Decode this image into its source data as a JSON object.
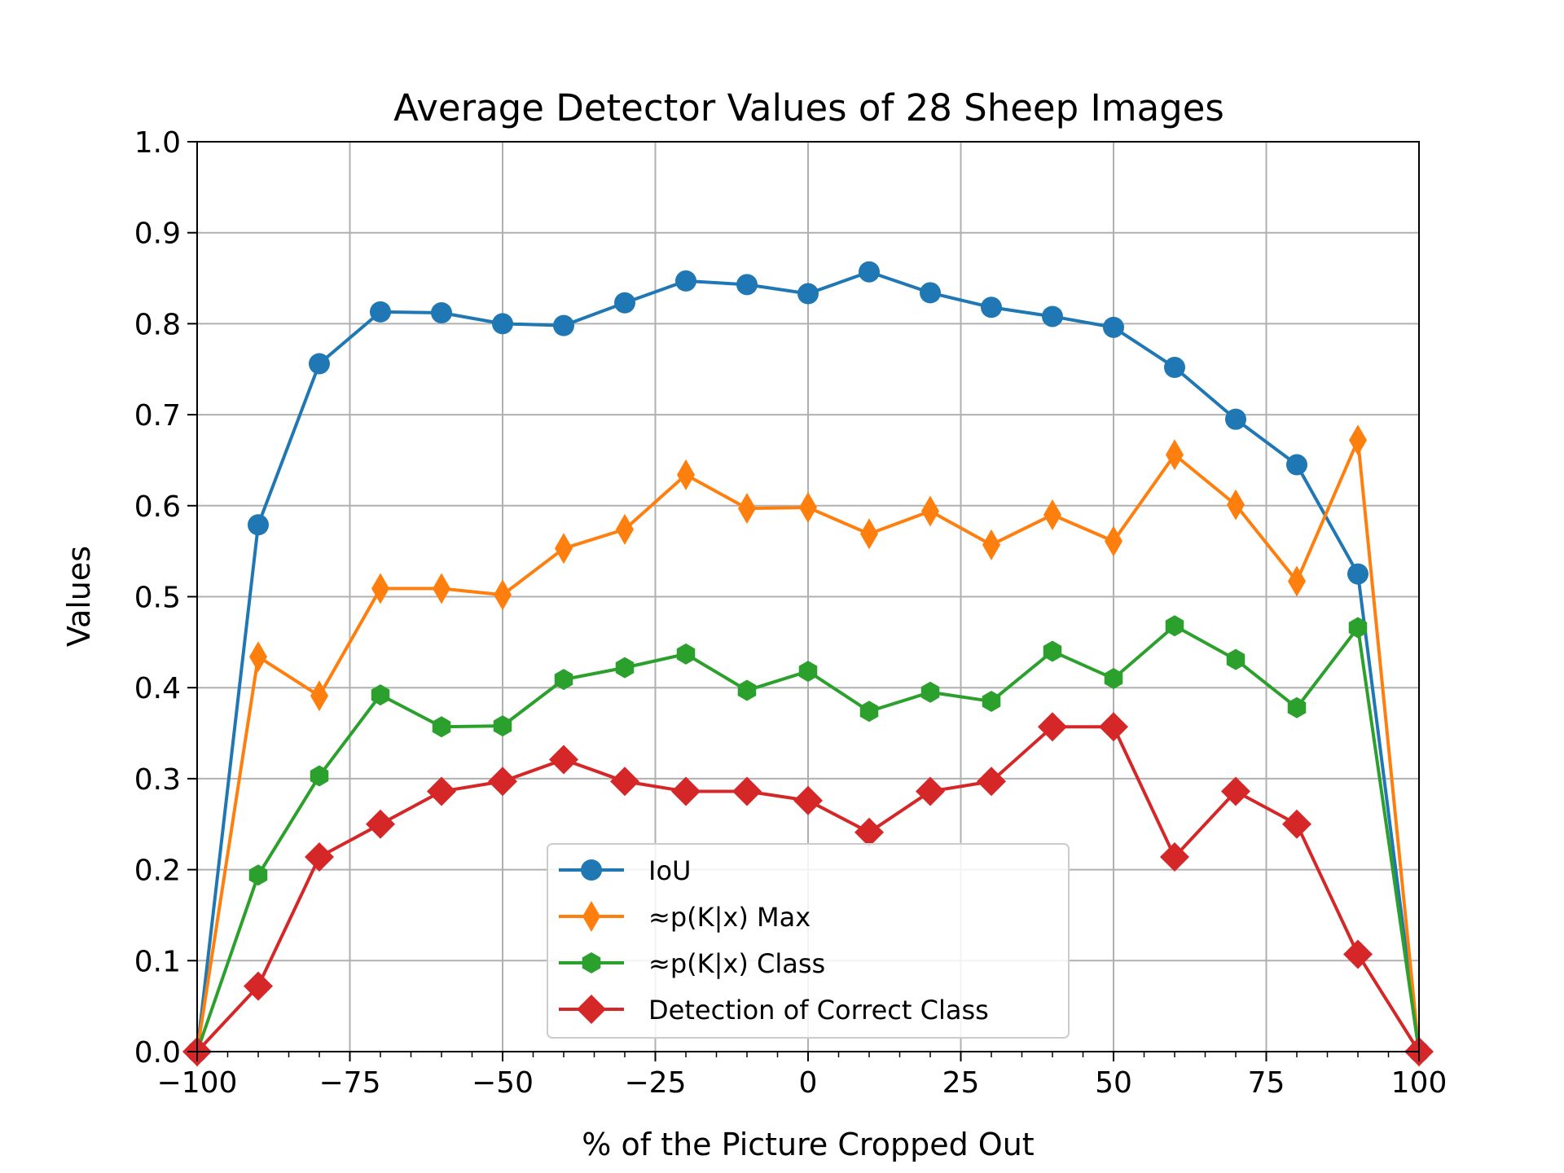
{
  "chart_data": {
    "type": "line",
    "title": "Average Detector Values of 28 Sheep Images",
    "xlabel": "% of the Picture Cropped Out",
    "ylabel": "Values",
    "xlim": [
      -100,
      100
    ],
    "ylim": [
      0,
      1
    ],
    "x_ticks": [
      -100,
      -75,
      -50,
      -25,
      0,
      25,
      50,
      75,
      100
    ],
    "x_tick_labels": [
      "−100",
      "−75",
      "−50",
      "−25",
      "0",
      "25",
      "50",
      "75",
      "100"
    ],
    "y_ticks": [
      0,
      0.1,
      0.2,
      0.3,
      0.4,
      0.5,
      0.6,
      0.7,
      0.8,
      0.9,
      1.0
    ],
    "y_tick_labels": [
      "0.0",
      "0.1",
      "0.2",
      "0.3",
      "0.4",
      "0.5",
      "0.6",
      "0.7",
      "0.8",
      "0.9",
      "1.0"
    ],
    "grid": true,
    "legend_position": "bottom-center",
    "x": [
      -100,
      -90,
      -80,
      -70,
      -60,
      -50,
      -40,
      -30,
      -20,
      -10,
      0,
      10,
      20,
      30,
      40,
      50,
      60,
      70,
      80,
      90,
      100
    ],
    "series": [
      {
        "name": "IoU",
        "color": "#1f77b4",
        "marker": "circle",
        "values": [
          0.0,
          0.579,
          0.756,
          0.813,
          0.812,
          0.8,
          0.798,
          0.823,
          0.847,
          0.843,
          0.833,
          0.857,
          0.834,
          0.818,
          0.808,
          0.796,
          0.752,
          0.695,
          0.645,
          0.525,
          0.0
        ]
      },
      {
        "name": "≈p(K|x) Max",
        "color": "#ff7f0e",
        "marker": "thin-diamond",
        "values": [
          0.0,
          0.434,
          0.391,
          0.509,
          0.509,
          0.502,
          0.553,
          0.574,
          0.634,
          0.597,
          0.598,
          0.569,
          0.594,
          0.557,
          0.59,
          0.561,
          0.656,
          0.601,
          0.517,
          0.672,
          0.0
        ]
      },
      {
        "name": "≈p(K|x) Class",
        "color": "#2ca02c",
        "marker": "hexagon",
        "values": [
          0.0,
          0.194,
          0.303,
          0.392,
          0.357,
          0.358,
          0.409,
          0.422,
          0.437,
          0.397,
          0.418,
          0.374,
          0.395,
          0.385,
          0.44,
          0.41,
          0.468,
          0.431,
          0.378,
          0.466,
          0.0
        ]
      },
      {
        "name": "Detection of Correct Class",
        "color": "#d62728",
        "marker": "diamond",
        "values": [
          0.0,
          0.072,
          0.214,
          0.25,
          0.286,
          0.297,
          0.321,
          0.297,
          0.286,
          0.286,
          0.276,
          0.241,
          0.286,
          0.297,
          0.357,
          0.357,
          0.214,
          0.286,
          0.25,
          0.107,
          0.0
        ]
      }
    ]
  }
}
